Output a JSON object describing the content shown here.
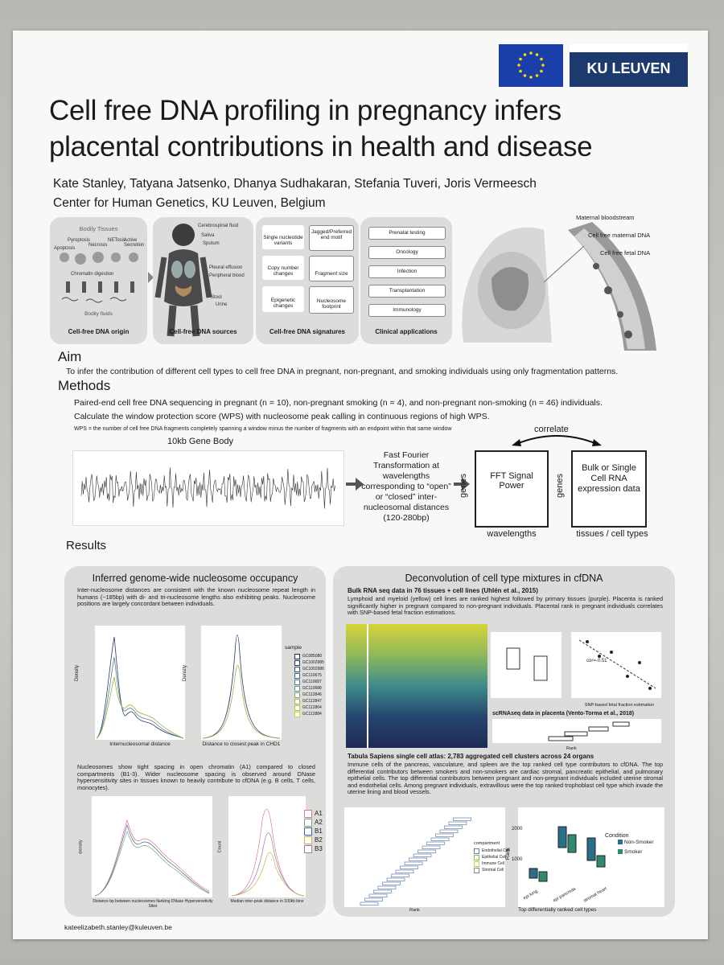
{
  "header": {
    "logo": "KU LEUVEN",
    "title_line1": "Cell free DNA profiling in pregnancy infers",
    "title_line2": "placental contributions in health and disease",
    "authors": "Kate Stanley, Tatyana Jatsenko,  Dhanya Sudhakaran, Stefania Tuveri, Joris Vermeesch",
    "affiliation": "Center for Human Genetics, KU Leuven, Belgium"
  },
  "overview": {
    "panels": [
      {
        "caption": "Cell-free DNA origin",
        "labels": [
          "Bodily Tissues",
          "Apoptosis",
          "Pyroptosis",
          "Necrosis",
          "NETosis",
          "Active Secretion",
          "Chromatin digestion",
          "Bodily fluids"
        ]
      },
      {
        "caption": "Cell-free DNA sources",
        "labels": [
          "Cerebrospinal fluid",
          "Saliva",
          "Sputum",
          "Pleural effusion",
          "Peripheral blood",
          "Stool",
          "Urine"
        ]
      },
      {
        "caption": "Cell-free DNA signatures",
        "labels": [
          "Single nucleotide variants",
          "Jagged/Preferred end motif",
          "Copy number changes",
          "Fragment size",
          "Epigenetic changes",
          "Nucleosome footprint"
        ]
      },
      {
        "caption": "Clinical applications",
        "labels": [
          "Prenatal testing",
          "Oncology",
          "Infection",
          "Transplantation",
          "Immunology"
        ]
      }
    ],
    "placenta_labels": [
      "Maternal bloodstream",
      "Cell free maternal DNA",
      "Cell free fetal DNA"
    ]
  },
  "aim": {
    "heading": "Aim",
    "text": "To infer the contribution of different cell types to cell free DNA in pregnant, non-pregnant, and smoking individuals using only fragmentation patterns."
  },
  "methods": {
    "heading": "Methods",
    "lines": [
      "Paired-end cell free DNA sequencing in pregnant (n = 10), non-pregnant smoking (n = 4), and non-pregnant non-smoking (n = 46) individuals.",
      "Calculate the window protection score (WPS) with nucleosome peak calling in continuous regions of high WPS."
    ],
    "wps_note": "WPS = the number of cell free DNA fragments completely spanning a window minus the number of fragments with an endpoint within that same window",
    "gene_body": "10kb Gene Body",
    "fft_text": "Fast Fourier Transformation at wavelengths corresponding to “open” or “closed” inter-nucleosomal distances (120-280bp)",
    "correlate": "correlate",
    "box1": {
      "label": "FFT Signal Power",
      "y_label": "genes",
      "x_label": "wavelengths"
    },
    "box2": {
      "label": "Bulk or Single Cell RNA expression data",
      "y_label": "genes",
      "x_label": "tissues / cell types"
    }
  },
  "results": {
    "heading": "Results",
    "left": {
      "title": "Inferred genome-wide nucleosome occupancy",
      "text1": "Inter-nucleosome distances are consistent with the known nucleosome repeat length in humans (~185bp) with di- and tri-nucleosome lengths also exhibiting peaks. Nucleosome positions are largely concordant between individuals.",
      "plot1_y": "Density",
      "plot1_x": "Internucleosomal distance",
      "plot2_y": "Density",
      "plot2_x": "Distance to closest peak in CHD1",
      "legend_title": "sample",
      "samples": [
        "GC085980",
        "GC1002985",
        "GC1002986",
        "GC110675",
        "GC110687",
        "GC110688",
        "GC112846",
        "GC112847",
        "GC112864",
        "GC112884"
      ],
      "text2": "Nucleosomes show tight spacing in open chromatin (A1) compared to closed compartments (B1-3). Wider nucleosome spacing is observed around DNase hypersensitivity sites in tissues known to heavily contribute to cfDNA (e.g. B cells, T cells, monocytes).",
      "plot3_y": "density",
      "plot3_x": "Distance bp between nucleosomes flanking DNase Hypersensitivity Sites",
      "plot4_y": "Count",
      "plot4_x": "Median inter-peak distance in 100kb bins",
      "compartments": [
        "A1",
        "A2",
        "B1",
        "B2",
        "B3"
      ]
    },
    "right": {
      "title": "Deconvolution of cell type mixtures in cfDNA",
      "bulk_heading": "Bulk RNA seq data in 76 tissues + cell lines (Uhlén et al., 2015)",
      "bulk_text": "Lymphoid and myeloid (yellow) cell lines are ranked highest followed by primary tissues (purple). Placenta is ranked significantly higher in pregnant compared to non-pregnant individuals. Placental rank in pregnant individuals correlates with SNP-based fetal fraction estimations.",
      "cor_label": "cor=-0.51",
      "ff_label": "SNP-based fetal fraction estimation",
      "sc_heading": "scRNAseq data in placenta (Vento-Torma et al., 2018)",
      "sc_x": "Rank",
      "ts_heading": "Tabula Sapiens single cell atlas: 2,783 aggregated cell clusters across 24 organs",
      "ts_text": "Immune cells of the pancreas, vasculature, and spleen are the top ranked cell type contributors to cfDNA. The top differential contributors between smokers and non-smokers are cardiac stromal, pancreatic epithelial, and pulmonary epithelial cells. The top differential contributors between pregnant and non-pregnant individuals included uterine stromal and endothelial cells. Among pregnant individuals, extravillous were the top ranked trophoblast cell type which invade the uterine lining and blood vessels.",
      "compartment_title": "compartment",
      "compartments": [
        "Endothelial Cell",
        "Epithelial Cell",
        "Immune Cell",
        "Stromal Cell"
      ],
      "rank_label": "Rank",
      "rank_ticks": [
        1000,
        2000
      ],
      "condition_title": "Condition",
      "conditions": [
        "Non-Smoker",
        "Smoker"
      ],
      "cell_types": [
        "epi lung",
        "epi pancreas",
        "stromal heart"
      ],
      "box_x": "Top differentially ranked cell types"
    }
  },
  "footer": {
    "email": "kateelizabeth.stanley@kuleuven.be"
  }
}
